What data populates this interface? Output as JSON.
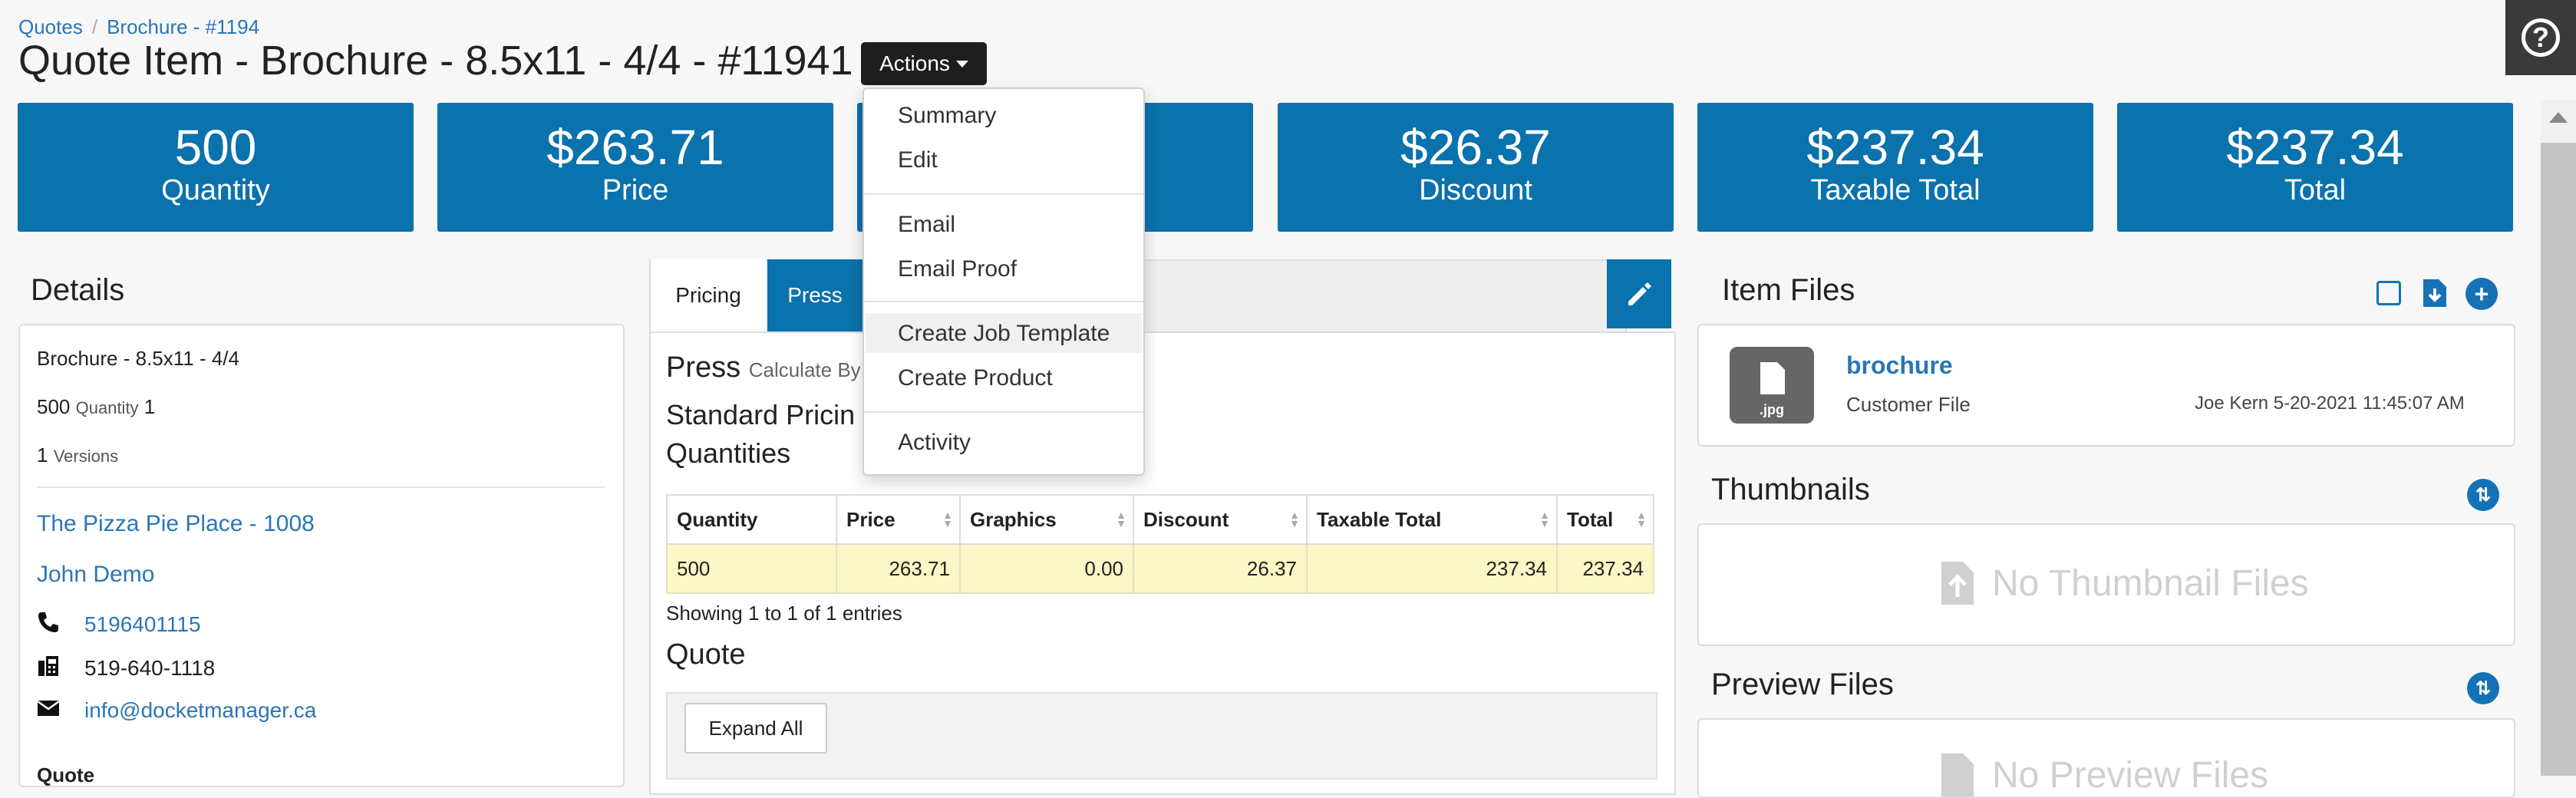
{
  "breadcrumb": {
    "root": "Quotes",
    "current": "Brochure - #1194"
  },
  "title": "Quote Item - Brochure - 8.5x11 - 4/4 - #11941",
  "actions_label": "Actions",
  "stats": [
    {
      "value": "500",
      "label": "Quantity"
    },
    {
      "value": "$263.71",
      "label": "Price"
    },
    {
      "value": "",
      "label": ""
    },
    {
      "value": "$26.37",
      "label": "Discount"
    },
    {
      "value": "$237.34",
      "label": "Taxable Total"
    },
    {
      "value": "$237.34",
      "label": "Total"
    }
  ],
  "details": {
    "title": "Details",
    "product": "Brochure - 8.5x11 - 4/4",
    "quantity_value": "500",
    "quantity_label": "Quantity",
    "quantity_extra": "1",
    "versions_value": "1",
    "versions_label": "Versions",
    "company": "The Pizza Pie Place - 1008",
    "contact": "John Demo",
    "phone": "5196401115",
    "fax": "519-640-1118",
    "email": "info@docketmanager.ca",
    "next_label": "Quote"
  },
  "pricing": {
    "tabs": [
      "Pricing",
      "Press"
    ],
    "press_title": "Press",
    "calc_by": "Calculate By",
    "standard_pricing": "Standard Pricin",
    "quantities": "Quantities",
    "columns": [
      "Quantity",
      "Price",
      "Graphics",
      "Discount",
      "Taxable Total",
      "Total"
    ],
    "rows": [
      [
        "500",
        "263.71",
        "0.00",
        "26.37",
        "237.34",
        "237.34"
      ]
    ],
    "showing": "Showing 1 to 1 of 1 entries",
    "quote_title": "Quote",
    "expand_all": "Expand All"
  },
  "menu": {
    "items": [
      "Summary",
      "Edit",
      "Email",
      "Email Proof",
      "Create Job Template",
      "Create Product",
      "Activity"
    ]
  },
  "item_files": {
    "title": "Item Files",
    "file_name": "brochure",
    "file_type": "Customer File",
    "file_ext": ".jpg",
    "uploaded": "Joe Kern 5-20-2021 11:45:07 AM"
  },
  "thumbnails": {
    "title": "Thumbnails",
    "empty": "No Thumbnail Files"
  },
  "preview_files": {
    "title": "Preview Files",
    "empty": "No Preview Files"
  },
  "colors": {
    "primary": "#0a72ac",
    "dark": "#1e1e1e",
    "highlight_row": "#fbf7c6",
    "link": "#2a76b8"
  }
}
